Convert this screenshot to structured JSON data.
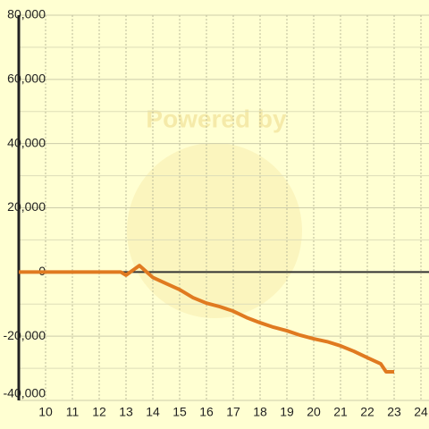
{
  "chart_data": {
    "type": "line",
    "watermark": "Powered by",
    "x": [
      9,
      10,
      11,
      12,
      12.8,
      13,
      13.5,
      14,
      14.5,
      15,
      15.5,
      16,
      16.5,
      17,
      17.5,
      18,
      18.5,
      19,
      19.5,
      20,
      20.5,
      21,
      21.5,
      22,
      22.5,
      22.7,
      23
    ],
    "series": [
      {
        "color": "#e07a20",
        "values": [
          0,
          0,
          0,
          0,
          0,
          -1000,
          2000,
          -1700,
          -3600,
          -5500,
          -8000,
          -9700,
          -10800,
          -12200,
          -14200,
          -15800,
          -17200,
          -18300,
          -19700,
          -20800,
          -21700,
          -23000,
          -24700,
          -26700,
          -28600,
          -31100,
          -31100
        ]
      }
    ],
    "xlim": [
      9,
      24.3
    ],
    "xticks": [
      10,
      11,
      12,
      13,
      14,
      15,
      16,
      17,
      18,
      19,
      20,
      21,
      22,
      23,
      24
    ],
    "ylim": [
      -40000,
      80000
    ],
    "yticks": [
      {
        "value": -40000,
        "label": "-40,000"
      },
      {
        "value": -20000,
        "label": "-20,000"
      },
      0,
      {
        "value": 20000,
        "label": "20,000"
      },
      {
        "value": 40000,
        "label": "40,000"
      },
      {
        "value": 60000,
        "label": "60,000"
      },
      {
        "value": 80000,
        "label": "80,000"
      }
    ],
    "grid": true
  }
}
